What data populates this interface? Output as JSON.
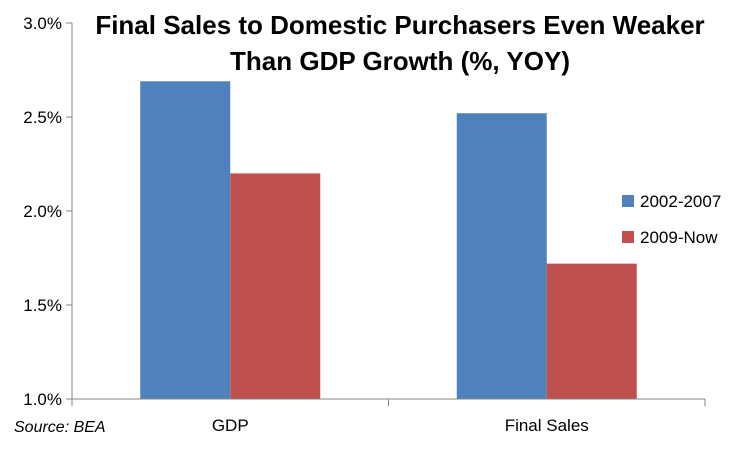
{
  "chart_data": {
    "type": "bar",
    "title_lines": [
      "Final Sales to Domestic Purchasers Even Weaker",
      "Than GDP Growth (%, YOY)"
    ],
    "categories": [
      "GDP",
      "Final Sales"
    ],
    "series": [
      {
        "name": "2002-2007",
        "values": [
          2.69,
          2.52
        ],
        "color": "#4F81BD"
      },
      {
        "name": "2009-Now",
        "values": [
          2.2,
          1.72
        ],
        "color": "#C0504D"
      }
    ],
    "ylim": [
      1.0,
      3.0
    ],
    "yticks": [
      1.0,
      1.5,
      2.0,
      2.5,
      3.0
    ],
    "ytick_labels": [
      "1.0%",
      "1.5%",
      "2.0%",
      "2.5%",
      "3.0%"
    ],
    "grid": false,
    "legend_position": "right",
    "source_note": "Source: BEA"
  }
}
